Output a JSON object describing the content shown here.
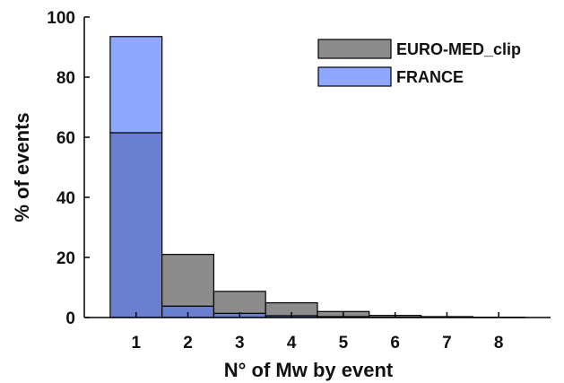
{
  "chart_data": {
    "type": "bar",
    "categories": [
      "1",
      "2",
      "3",
      "4",
      "5",
      "6",
      "7",
      "8"
    ],
    "series": [
      {
        "name": "EURO-MED_clip",
        "values": [
          61.5,
          21.0,
          8.7,
          4.9,
          2.0,
          0.7,
          0.3,
          0.1
        ],
        "color": "#8c8c8c"
      },
      {
        "name": "FRANCE",
        "values": [
          93.5,
          3.8,
          1.4,
          0.6,
          0.3,
          0.1,
          0.0,
          0.0
        ],
        "color": "#8ea8ff"
      }
    ],
    "overlap_color": "#6a80cf",
    "xlabel": "N° of Mw by event",
    "ylabel": "% of events",
    "ylim": [
      0,
      100
    ],
    "xlim": [
      0,
      9
    ],
    "yticks": [
      0,
      20,
      40,
      60,
      80,
      100
    ],
    "grid": false,
    "legend_position": "top-right"
  }
}
